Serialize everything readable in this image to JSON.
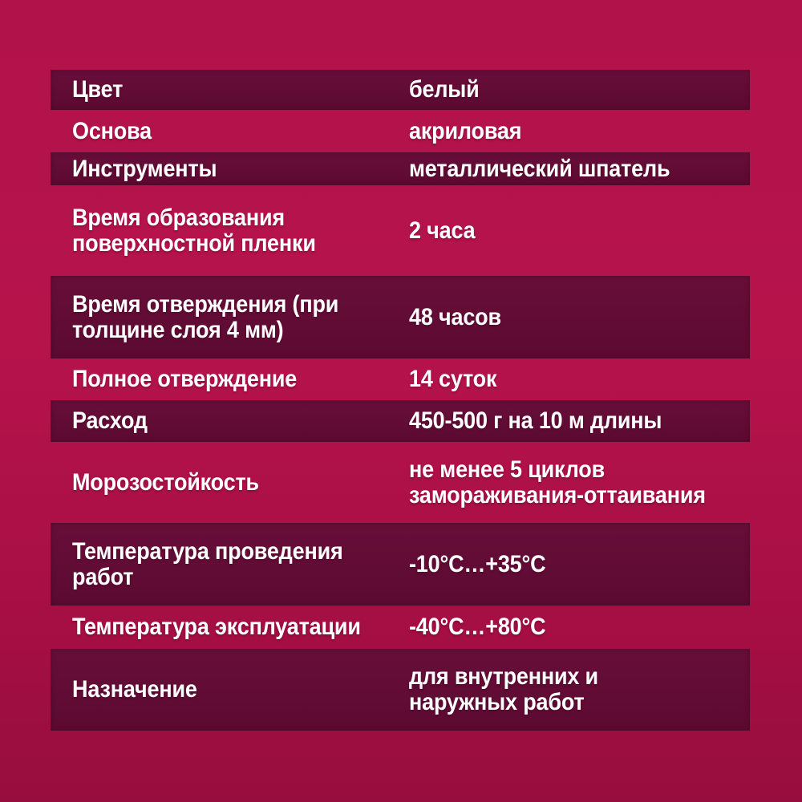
{
  "spec_sheet": {
    "language": "ru",
    "rows": [
      {
        "label": "Цвет",
        "value": "белый",
        "striped": true
      },
      {
        "label": "Основа",
        "value": "акриловая",
        "striped": false
      },
      {
        "label": "Инструменты",
        "value": "металлический шпатель",
        "striped": true
      },
      {
        "label": "Время образования\nповерхностной пленки",
        "value": "2 часа",
        "striped": false
      },
      {
        "label": "Время отверждения (при\nтолщине слоя 4 мм)",
        "value": "48 часов",
        "striped": true
      },
      {
        "label": "Полное отверждение",
        "value": "14 суток",
        "striped": false
      },
      {
        "label": "Расход",
        "value": "450-500 г на 10 м длины",
        "striped": true
      },
      {
        "label": "Морозостойкость",
        "value": "не менее 5 циклов\nзамораживания-оттаивания",
        "striped": false
      },
      {
        "label": "Температура проведения\nработ",
        "value": "-10°C…+35°C",
        "striped": true
      },
      {
        "label": "Температура эксплуатации",
        "value": "-40°C…+80°C",
        "striped": false
      },
      {
        "label": "Назначение",
        "value": "для внутренних и\nнаружных работ",
        "striped": true
      }
    ],
    "colors": {
      "background_top": "#b2124a",
      "background_mid": "#b6134b",
      "background_low": "#a80f44",
      "background_bottom": "#970d3e",
      "stripe_top": "#670e39",
      "stripe_bottom": "#5c0a32",
      "text": "#ffffff"
    }
  }
}
